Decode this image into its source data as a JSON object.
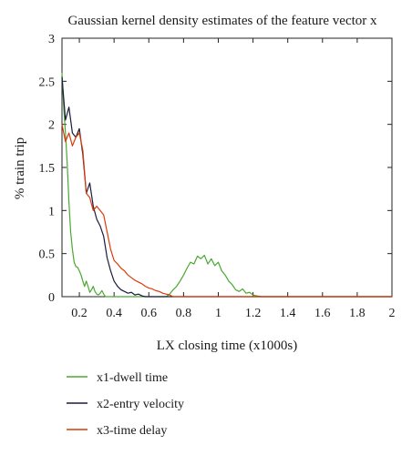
{
  "chart_data": {
    "type": "line",
    "title": "Gaussian kernel density estimates of the feature vector x",
    "xlabel": "LX closing time (x1000s)",
    "ylabel": "% train trip",
    "xlim": [
      0.1,
      2.0
    ],
    "ylim": [
      0,
      3
    ],
    "xticks": [
      0.2,
      0.4,
      0.6,
      0.8,
      1,
      1.2,
      1.4,
      1.6,
      1.8,
      2
    ],
    "yticks": [
      0,
      0.5,
      1,
      1.5,
      2,
      2.5,
      3
    ],
    "grid": false,
    "legend_position": "bottom",
    "series": [
      {
        "name": "x1-dwell time",
        "color": "#4aa832",
        "x": [
          0.1,
          0.11,
          0.12,
          0.13,
          0.14,
          0.15,
          0.16,
          0.17,
          0.18,
          0.19,
          0.2,
          0.21,
          0.22,
          0.23,
          0.24,
          0.25,
          0.26,
          0.27,
          0.28,
          0.29,
          0.3,
          0.31,
          0.32,
          0.33,
          0.34,
          0.35,
          0.4,
          0.5,
          0.6,
          0.7,
          0.72,
          0.74,
          0.76,
          0.78,
          0.8,
          0.82,
          0.84,
          0.86,
          0.88,
          0.9,
          0.92,
          0.94,
          0.96,
          0.98,
          1.0,
          1.02,
          1.04,
          1.06,
          1.08,
          1.1,
          1.12,
          1.14,
          1.16,
          1.18,
          1.2,
          1.22,
          1.25,
          1.5,
          2.0
        ],
        "y": [
          2.6,
          2.2,
          1.9,
          1.55,
          1.1,
          0.75,
          0.55,
          0.4,
          0.35,
          0.34,
          0.3,
          0.25,
          0.18,
          0.12,
          0.18,
          0.12,
          0.05,
          0.08,
          0.12,
          0.06,
          0.03,
          0.02,
          0.04,
          0.07,
          0.03,
          0.0,
          0.0,
          0.0,
          0.0,
          0.0,
          0.03,
          0.08,
          0.12,
          0.18,
          0.25,
          0.33,
          0.4,
          0.38,
          0.47,
          0.44,
          0.48,
          0.38,
          0.44,
          0.36,
          0.4,
          0.3,
          0.25,
          0.18,
          0.14,
          0.08,
          0.06,
          0.09,
          0.04,
          0.05,
          0.02,
          0.01,
          0.0,
          0.0,
          0.0
        ]
      },
      {
        "name": "x2-entry velocity",
        "color": "#1c1c3c",
        "x": [
          0.1,
          0.12,
          0.14,
          0.16,
          0.18,
          0.2,
          0.22,
          0.24,
          0.26,
          0.28,
          0.3,
          0.32,
          0.34,
          0.36,
          0.38,
          0.4,
          0.42,
          0.44,
          0.46,
          0.48,
          0.5,
          0.52,
          0.54,
          0.56,
          0.58,
          0.6,
          0.65,
          1.0,
          2.0
        ],
        "y": [
          2.55,
          2.05,
          2.2,
          1.9,
          1.85,
          1.95,
          1.65,
          1.2,
          1.32,
          1.05,
          0.9,
          0.82,
          0.7,
          0.45,
          0.3,
          0.18,
          0.12,
          0.08,
          0.06,
          0.04,
          0.05,
          0.02,
          0.03,
          0.01,
          0.0,
          0.0,
          0.0,
          0.0,
          0.0
        ]
      },
      {
        "name": "x3-time delay",
        "color": "#d93a0a",
        "x": [
          0.1,
          0.12,
          0.14,
          0.16,
          0.18,
          0.2,
          0.22,
          0.24,
          0.26,
          0.28,
          0.3,
          0.32,
          0.34,
          0.36,
          0.38,
          0.4,
          0.42,
          0.44,
          0.46,
          0.48,
          0.5,
          0.52,
          0.54,
          0.56,
          0.58,
          0.6,
          0.62,
          0.64,
          0.66,
          0.68,
          0.7,
          0.72,
          0.74,
          0.8,
          1.0,
          2.0
        ],
        "y": [
          2.0,
          1.8,
          1.9,
          1.75,
          1.85,
          1.9,
          1.7,
          1.2,
          1.15,
          1.0,
          1.05,
          1.0,
          0.95,
          0.75,
          0.55,
          0.42,
          0.38,
          0.33,
          0.3,
          0.25,
          0.22,
          0.19,
          0.17,
          0.15,
          0.12,
          0.1,
          0.09,
          0.07,
          0.06,
          0.04,
          0.03,
          0.02,
          0.0,
          0.0,
          0.0,
          0.0
        ]
      }
    ]
  }
}
